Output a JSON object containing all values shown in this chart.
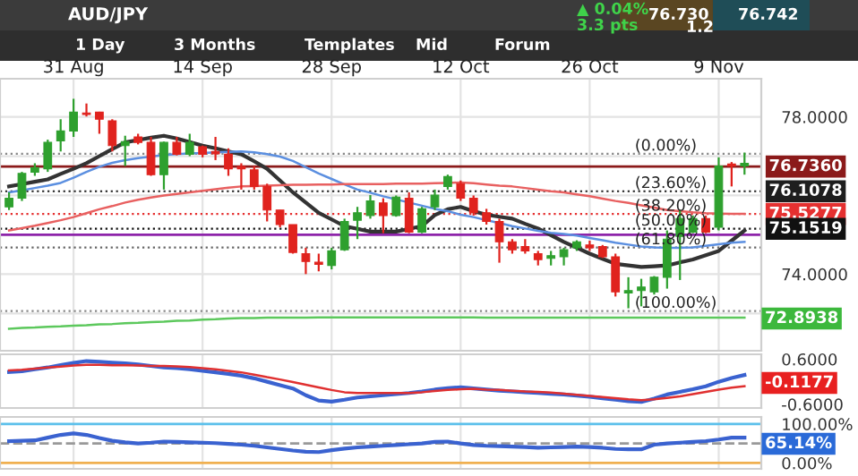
{
  "chart_data": [
    {
      "type": "candlestick",
      "title": "AUD/JPY",
      "categories": [
        null,
        null,
        null,
        null,
        null,
        "31 Aug",
        null,
        null,
        null,
        null,
        null,
        null,
        null,
        null,
        null,
        "14 Sep",
        null,
        null,
        null,
        null,
        null,
        null,
        null,
        null,
        null,
        "28 Sep",
        null,
        null,
        null,
        null,
        null,
        null,
        null,
        null,
        null,
        "12 Oct",
        null,
        null,
        null,
        null,
        null,
        null,
        null,
        null,
        null,
        "26 Oct",
        null,
        null,
        null,
        null,
        null,
        null,
        null,
        null,
        null,
        "9 Nov",
        null,
        null
      ],
      "ohlc": [
        [
          75.71,
          76.08,
          75.63,
          75.93
        ],
        [
          75.93,
          76.6,
          75.86,
          76.56
        ],
        [
          76.59,
          76.82,
          76.5,
          76.71
        ],
        [
          76.68,
          77.42,
          76.6,
          77.35
        ],
        [
          77.39,
          77.94,
          77.12,
          77.64
        ],
        [
          77.64,
          78.46,
          77.49,
          78.12
        ],
        [
          78.1,
          78.34,
          78.01,
          78.06
        ],
        [
          78.12,
          78.13,
          77.57,
          77.94
        ],
        [
          77.9,
          77.94,
          77.12,
          77.27
        ],
        [
          77.27,
          77.52,
          76.75,
          77.37
        ],
        [
          77.49,
          77.57,
          77.3,
          77.35
        ],
        [
          77.35,
          77.49,
          76.5,
          76.53
        ],
        [
          76.53,
          77.37,
          76.15,
          77.35
        ],
        [
          77.35,
          77.49,
          77.02,
          77.05
        ],
        [
          77.05,
          77.57,
          77.0,
          77.35
        ],
        [
          77.24,
          77.27,
          76.97,
          77.05
        ],
        [
          77.12,
          77.49,
          76.9,
          77.06
        ],
        [
          77.05,
          77.2,
          76.5,
          76.68
        ],
        [
          76.74,
          76.82,
          76.15,
          76.68
        ],
        [
          76.65,
          76.75,
          76.15,
          76.23
        ],
        [
          76.23,
          76.3,
          75.34,
          75.63
        ],
        [
          75.63,
          75.63,
          75.19,
          75.26
        ],
        [
          75.26,
          75.26,
          74.52,
          74.55
        ],
        [
          74.52,
          74.67,
          74.0,
          74.32
        ],
        [
          74.3,
          74.52,
          74.07,
          74.25
        ],
        [
          74.22,
          74.67,
          74.12,
          74.59
        ],
        [
          74.62,
          75.41,
          74.59,
          75.34
        ],
        [
          75.37,
          75.71,
          74.89,
          75.56
        ],
        [
          75.49,
          76.01,
          75.41,
          75.86
        ],
        [
          75.81,
          75.93,
          75.04,
          75.49
        ],
        [
          75.49,
          76.0,
          75.46,
          75.96
        ],
        [
          75.93,
          76.08,
          75.04,
          75.07
        ],
        [
          75.07,
          75.71,
          75.04,
          75.66
        ],
        [
          75.71,
          76.15,
          75.63,
          76.01
        ],
        [
          76.23,
          76.53,
          76.15,
          76.48
        ],
        [
          76.3,
          76.38,
          75.86,
          75.93
        ],
        [
          75.93,
          76.0,
          75.49,
          75.56
        ],
        [
          75.56,
          75.66,
          75.26,
          75.34
        ],
        [
          75.34,
          75.41,
          74.29,
          74.82
        ],
        [
          74.82,
          74.89,
          74.52,
          74.62
        ],
        [
          74.7,
          74.89,
          74.52,
          74.59
        ],
        [
          74.52,
          74.59,
          74.22,
          74.37
        ],
        [
          74.4,
          74.59,
          74.22,
          74.47
        ],
        [
          74.44,
          74.67,
          74.22,
          74.62
        ],
        [
          74.67,
          74.86,
          74.59,
          74.82
        ],
        [
          74.74,
          74.85,
          74.59,
          74.67
        ],
        [
          74.7,
          74.74,
          74.41,
          74.44
        ],
        [
          74.44,
          74.52,
          73.43,
          73.55
        ],
        [
          73.52,
          73.92,
          73.13,
          73.58
        ],
        [
          73.58,
          73.88,
          73.18,
          73.67
        ],
        [
          73.55,
          73.95,
          73.48,
          73.92
        ],
        [
          73.92,
          75.11,
          73.63,
          74.89
        ],
        [
          74.96,
          75.63,
          73.85,
          75.41
        ],
        [
          75.07,
          75.49,
          75.04,
          75.41
        ],
        [
          75.41,
          75.49,
          75.04,
          75.07
        ],
        [
          75.19,
          76.97,
          75.11,
          76.75
        ],
        [
          76.8,
          76.85,
          76.23,
          76.75
        ],
        [
          76.75,
          77.09,
          76.53,
          76.82
        ]
      ],
      "series": [
        {
          "type": "line",
          "color": "#333333",
          "values": [
            76.23,
            76.29,
            76.35,
            76.41,
            76.55,
            76.68,
            76.82,
            77.0,
            77.18,
            77.35,
            77.41,
            77.47,
            77.52,
            77.45,
            77.36,
            77.27,
            77.2,
            77.12,
            77.05,
            76.87,
            76.68,
            76.38,
            76.08,
            75.82,
            75.56,
            75.39,
            75.22,
            75.15,
            75.08,
            75.08,
            75.08,
            75.15,
            75.22,
            75.5,
            75.65,
            75.71,
            75.6,
            75.51,
            75.46,
            75.41,
            75.28,
            75.16,
            74.99,
            74.82,
            74.67,
            74.52,
            74.39,
            74.26,
            74.22,
            74.18,
            74.2,
            74.22,
            74.3,
            74.37,
            74.48,
            74.59,
            74.85,
            75.11
          ]
        },
        {
          "type": "line",
          "color": "#5b8fe0",
          "values": [
            76.08,
            76.13,
            76.19,
            76.25,
            76.32,
            76.45,
            76.6,
            76.73,
            76.83,
            76.9,
            76.95,
            76.99,
            77.03,
            77.05,
            77.07,
            77.08,
            77.1,
            77.11,
            77.12,
            77.1,
            77.05,
            76.99,
            76.88,
            76.72,
            76.56,
            76.42,
            76.28,
            76.15,
            76.07,
            75.98,
            75.9,
            75.82,
            75.74,
            75.66,
            75.6,
            75.51,
            75.45,
            75.37,
            75.3,
            75.22,
            75.16,
            75.1,
            75.05,
            75.02,
            74.98,
            74.92,
            74.86,
            74.8,
            74.75,
            74.7,
            74.68,
            74.67,
            74.67,
            74.68,
            74.72,
            74.76,
            74.8,
            74.82
          ]
        },
        {
          "type": "line",
          "color": "#e86060",
          "values": [
            75.11,
            75.17,
            75.23,
            75.3,
            75.37,
            75.45,
            75.55,
            75.65,
            75.73,
            75.82,
            75.89,
            75.95,
            76.0,
            76.04,
            76.08,
            76.12,
            76.16,
            76.2,
            76.23,
            76.24,
            76.25,
            76.26,
            76.27,
            76.27,
            76.28,
            76.28,
            76.29,
            76.29,
            76.29,
            76.29,
            76.3,
            76.3,
            76.3,
            76.31,
            76.32,
            76.33,
            76.31,
            76.28,
            76.25,
            76.23,
            76.19,
            76.15,
            76.11,
            76.08,
            76.03,
            75.98,
            75.92,
            75.86,
            75.81,
            75.75,
            75.69,
            75.63,
            75.6,
            75.57,
            75.55,
            75.54,
            75.53,
            75.53
          ]
        },
        {
          "type": "line",
          "color": "#5cc85c",
          "values": [
            72.61,
            72.63,
            72.64,
            72.66,
            72.67,
            72.69,
            72.7,
            72.72,
            72.73,
            72.75,
            72.76,
            72.78,
            72.79,
            72.81,
            72.82,
            72.84,
            72.85,
            72.87,
            72.88,
            72.88,
            72.89,
            72.89,
            72.89,
            72.89,
            72.9,
            72.9,
            72.9,
            72.9,
            72.9,
            72.9,
            72.9,
            72.9,
            72.9,
            72.9,
            72.9,
            72.9,
            72.9,
            72.89,
            72.89,
            72.89,
            72.89,
            72.89,
            72.89,
            72.89,
            72.89,
            72.89,
            72.89,
            72.89,
            72.89,
            72.89,
            72.89,
            72.89,
            72.89,
            72.89,
            72.89,
            72.89,
            72.89,
            72.89
          ]
        }
      ],
      "ylim": [
        72.05,
        78.97
      ],
      "yticks": [
        {
          "value": 73,
          "label": null
        },
        {
          "value": 74,
          "label": "74.0000"
        },
        {
          "value": 75,
          "label": null
        },
        {
          "value": 76,
          "label": null
        },
        {
          "value": 77,
          "label": null
        },
        {
          "value": 78,
          "label": "78.0000"
        }
      ],
      "grid": true,
      "ref_lines": [
        {
          "axis": "y",
          "value": 75.0,
          "color": "#8e24aa",
          "line_style": "solid"
        },
        {
          "axis": "y",
          "value": 76.736,
          "label": "76.7360",
          "color": "#8b1a1a",
          "line_style": "solid"
        },
        {
          "axis": "y",
          "value": 77.0584,
          "color": "#888888",
          "line_style": "dotted"
        },
        {
          "axis": "y",
          "value": 76.1078,
          "label": "76.1078",
          "color": "#1e1e1e",
          "line_style": "dotted"
        },
        {
          "axis": "y",
          "value": 75.5277,
          "label": "75.5277",
          "color": "#e53030",
          "line_style": "dotted"
        },
        {
          "axis": "y",
          "value": 75.1519,
          "label": "75.1519",
          "color": "#111111",
          "line_style": "dotted"
        },
        {
          "axis": "y",
          "value": 74.6738,
          "color": "#666666",
          "line_style": "dotted"
        },
        {
          "axis": "y",
          "value": 73.06,
          "color": "#888888",
          "line_style": "dotted"
        }
      ],
      "annotations": [
        "1 Day",
        "3 Months",
        "Templates",
        "Mid",
        "Forum",
        "▲ 0.04%",
        "3.3 pts",
        "76.730",
        "76.742",
        "1.2",
        "(0.00%)",
        "(23.60%)",
        "(38.20%)",
        "(50.00%)",
        "(61.80%)",
        "(100.00%)",
        "72.8938"
      ]
    },
    {
      "type": "line",
      "categories": [
        null,
        null,
        null,
        null,
        null,
        null,
        null,
        null,
        null,
        null,
        null,
        null,
        null,
        null,
        null,
        null,
        null,
        null,
        null,
        null,
        null,
        null,
        null,
        null,
        null,
        null,
        null,
        null,
        null,
        null,
        null,
        null,
        null,
        null,
        null,
        null,
        null,
        null,
        null,
        null,
        null,
        null,
        null,
        null,
        null,
        null,
        null,
        null,
        null,
        null,
        null,
        null,
        null,
        null,
        null,
        null,
        null,
        null
      ],
      "series": [
        {
          "color": "#3a62d0",
          "values": [
            0.26,
            0.28,
            0.33,
            0.38,
            0.44,
            0.5,
            0.55,
            0.53,
            0.51,
            0.49,
            0.46,
            0.42,
            0.38,
            0.36,
            0.33,
            0.29,
            0.25,
            0.21,
            0.16,
            0.09,
            0.0,
            -0.09,
            -0.18,
            -0.36,
            -0.5,
            -0.53,
            -0.48,
            -0.42,
            -0.39,
            -0.36,
            -0.33,
            -0.3,
            -0.26,
            -0.21,
            -0.17,
            -0.15,
            -0.18,
            -0.21,
            -0.24,
            -0.26,
            -0.28,
            -0.3,
            -0.32,
            -0.34,
            -0.37,
            -0.4,
            -0.44,
            -0.48,
            -0.52,
            -0.54,
            -0.45,
            -0.34,
            -0.27,
            -0.2,
            -0.12,
            0.0,
            0.1,
            0.18
          ]
        },
        {
          "color": "#e03030",
          "values": [
            0.3,
            0.32,
            0.35,
            0.38,
            0.4,
            0.43,
            0.45,
            0.45,
            0.44,
            0.44,
            0.43,
            0.42,
            0.42,
            0.41,
            0.39,
            0.36,
            0.33,
            0.29,
            0.25,
            0.19,
            0.12,
            0.06,
            -0.01,
            -0.08,
            -0.15,
            -0.22,
            -0.28,
            -0.3,
            -0.3,
            -0.3,
            -0.3,
            -0.3,
            -0.28,
            -0.25,
            -0.22,
            -0.2,
            -0.19,
            -0.21,
            -0.22,
            -0.24,
            -0.26,
            -0.27,
            -0.29,
            -0.32,
            -0.35,
            -0.38,
            -0.41,
            -0.44,
            -0.47,
            -0.49,
            -0.47,
            -0.43,
            -0.39,
            -0.33,
            -0.27,
            -0.21,
            -0.16,
            -0.12
          ]
        }
      ],
      "ylim": [
        -0.7,
        0.73
      ],
      "yticks": [
        {
          "value": 0.6,
          "label": "0.6000"
        },
        {
          "value": -0.6,
          "label": "-0.6000"
        }
      ],
      "grid": "x",
      "tick_labels": "y",
      "annotations": [
        "-0.1177"
      ]
    },
    {
      "type": "line",
      "categories": [
        null,
        null,
        null,
        null,
        null,
        null,
        null,
        null,
        null,
        null,
        null,
        null,
        null,
        null,
        null,
        null,
        null,
        null,
        null,
        null,
        null,
        null,
        null,
        null,
        null,
        null,
        null,
        null,
        null,
        null,
        null,
        null,
        null,
        null,
        null,
        null,
        null,
        null,
        null,
        null,
        null,
        null,
        null,
        null,
        null,
        null,
        null,
        null,
        null,
        null,
        null,
        null,
        null,
        null,
        null,
        null,
        null,
        null
      ],
      "series": [
        {
          "color": "#3a62d0",
          "values": [
            56,
            57,
            58,
            65,
            72,
            76,
            72,
            64,
            57,
            53,
            50,
            52,
            55,
            54,
            53,
            52,
            51,
            49,
            47,
            44,
            40,
            36,
            32,
            29,
            28,
            33,
            37,
            40,
            42,
            44,
            46,
            48,
            50,
            54,
            55,
            50,
            46,
            44,
            43,
            42,
            41,
            39,
            40,
            41,
            42,
            41,
            39,
            36,
            35,
            35,
            47,
            50,
            52,
            54,
            56,
            60,
            65,
            65
          ]
        }
      ],
      "ylim": [
        -15,
        118
      ],
      "yticks": [
        {
          "value": 100,
          "label": "100.00%"
        },
        {
          "value": 0,
          "label": "0.00%"
        }
      ],
      "grid": "x",
      "tick_labels": "y",
      "ref_lines": [
        {
          "axis": "y",
          "value": 100,
          "color": "#5bc0eb",
          "line_style": "solid"
        },
        {
          "axis": "y",
          "value": 50,
          "color": "#999999",
          "line_style": "dashed"
        },
        {
          "axis": "y",
          "value": 0,
          "color": "#f0b050",
          "line_style": "solid"
        }
      ],
      "annotations": [
        "65.14%"
      ]
    }
  ]
}
